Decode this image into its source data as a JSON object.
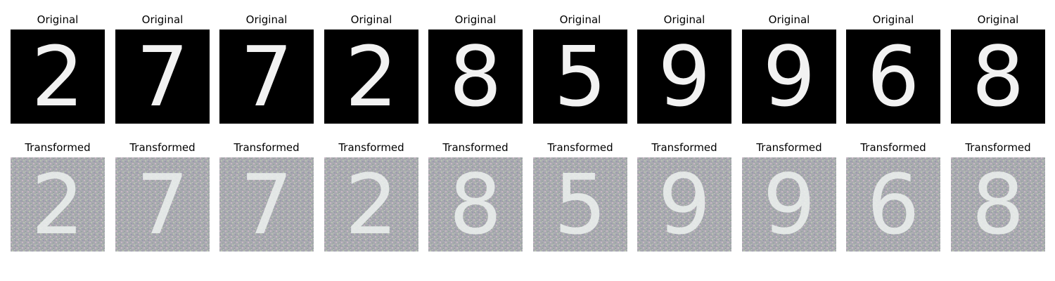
{
  "labels": {
    "original": "Original",
    "transformed": "Transformed"
  },
  "samples": [
    {
      "digit": "2"
    },
    {
      "digit": "7"
    },
    {
      "digit": "7"
    },
    {
      "digit": "2"
    },
    {
      "digit": "8"
    },
    {
      "digit": "5"
    },
    {
      "digit": "9"
    },
    {
      "digit": "9"
    },
    {
      "digit": "6"
    },
    {
      "digit": "8"
    }
  ],
  "colors": {
    "original_bg": "#000000",
    "original_fg": "#f2f2f2",
    "transformed_bg": "#a9aab0",
    "transformed_fg": "#eef2f0"
  }
}
